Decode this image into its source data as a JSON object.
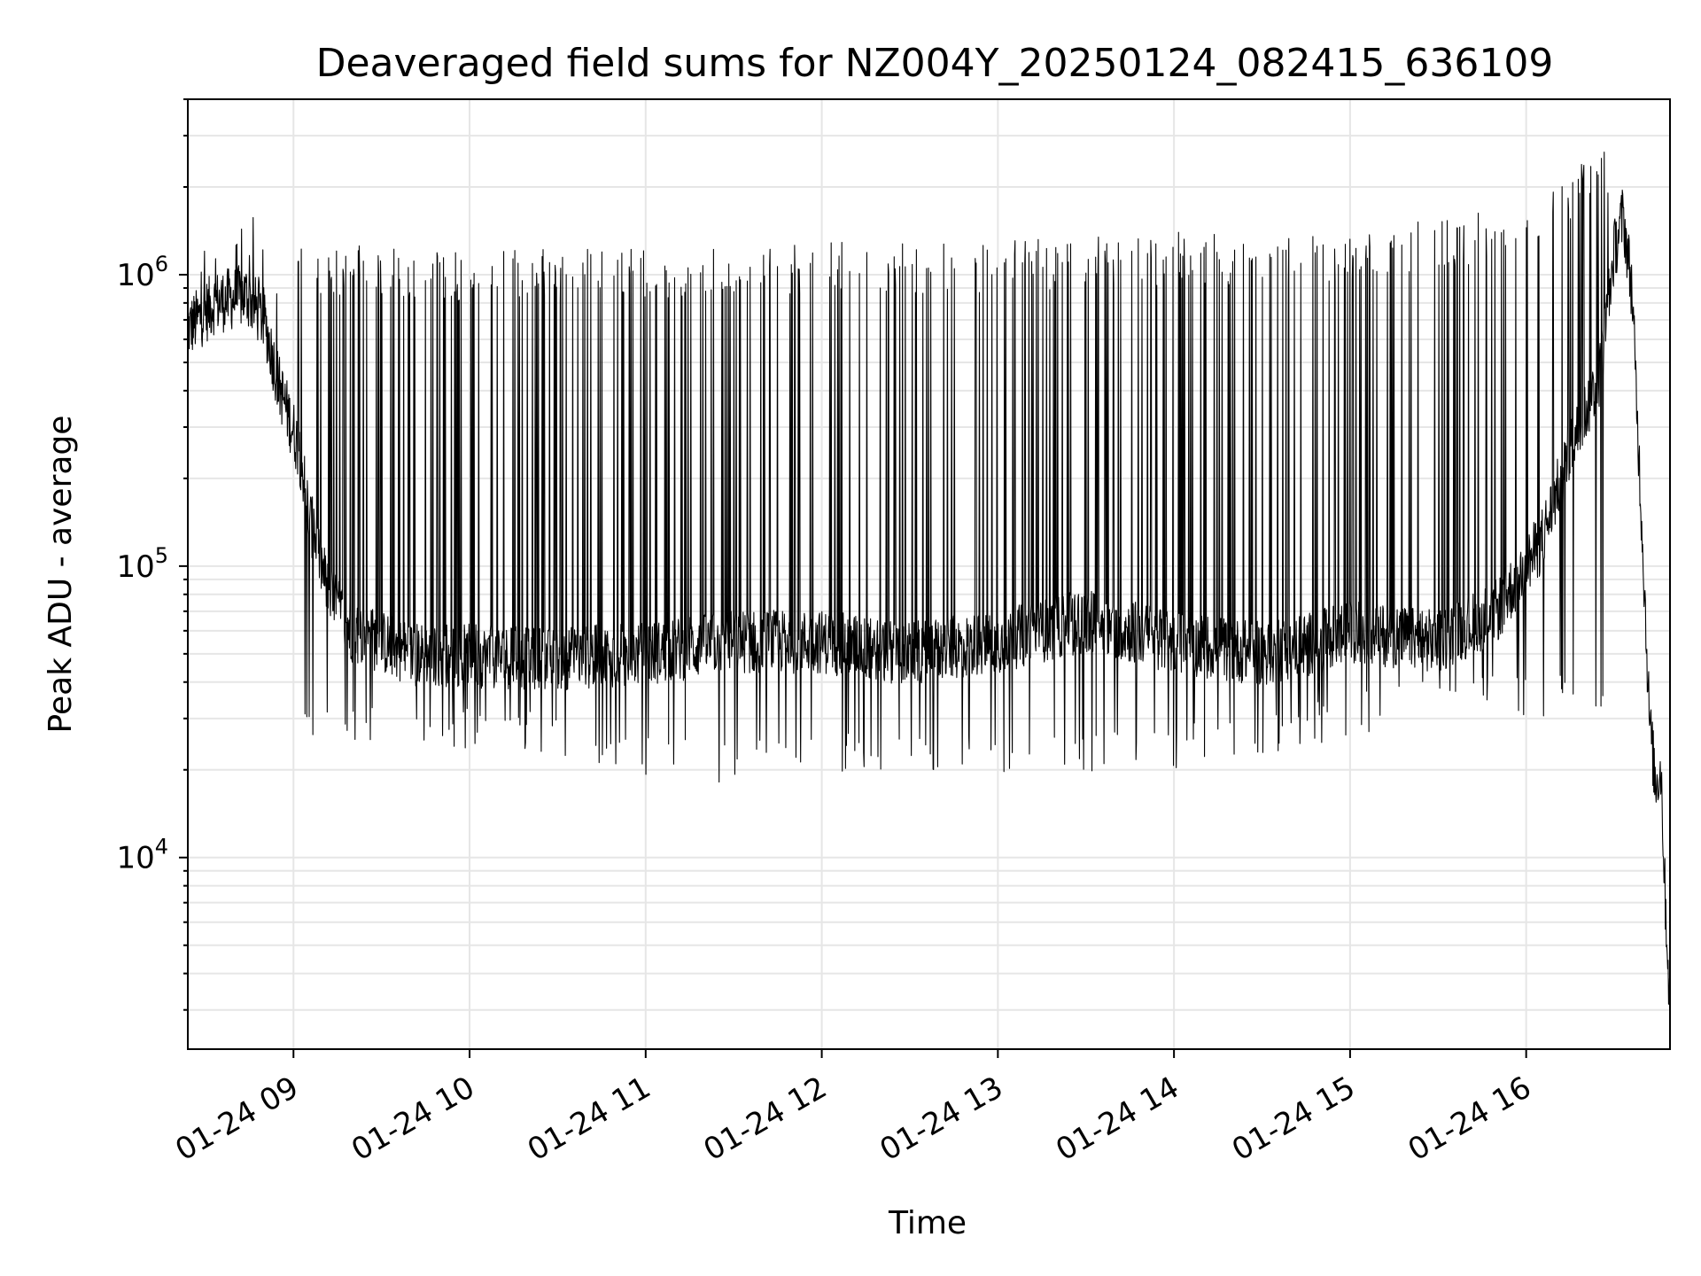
{
  "chart_data": {
    "type": "line",
    "title": "Deaveraged field sums for NZ004Y_20250124_082415_636109",
    "xlabel": "Time",
    "ylabel": "Peak ADU - average",
    "xscale": "time",
    "yscale": "log",
    "grid": true,
    "line_color": "#000000",
    "grid_color": "#e6e6e6",
    "xlim": [
      "2025-01-24 08:24",
      "2025-01-24 16:49"
    ],
    "ylim": [
      2200,
      4000000
    ],
    "x_tick_labels": [
      "01-24 09",
      "01-24 10",
      "01-24 11",
      "01-24 12",
      "01-24 13",
      "01-24 14",
      "01-24 15",
      "01-24 16"
    ],
    "y_tick_labels": [
      {
        "base": "10",
        "exp": "4"
      },
      {
        "base": "10",
        "exp": "5"
      },
      {
        "base": "10",
        "exp": "6"
      }
    ],
    "series": [
      {
        "style": "dense line with frequent spikes",
        "baseline_points": [
          {
            "x": "2025-01-24 08:24",
            "y": 650000
          },
          {
            "x": "2025-01-24 08:33",
            "y": 800000
          },
          {
            "x": "2025-01-24 08:44",
            "y": 850000
          },
          {
            "x": "2025-01-24 08:50",
            "y": 700000
          },
          {
            "x": "2025-01-24 08:55",
            "y": 420000
          },
          {
            "x": "2025-01-24 09:02",
            "y": 250000
          },
          {
            "x": "2025-01-24 09:06",
            "y": 140000
          },
          {
            "x": "2025-01-24 09:12",
            "y": 80000
          },
          {
            "x": "2025-01-24 09:20",
            "y": 60000
          },
          {
            "x": "2025-01-24 09:40",
            "y": 50000
          },
          {
            "x": "2025-01-24 10:30",
            "y": 48000
          },
          {
            "x": "2025-01-24 11:00",
            "y": 50000
          },
          {
            "x": "2025-01-24 11:30",
            "y": 55000
          },
          {
            "x": "2025-01-24 12:00",
            "y": 55000
          },
          {
            "x": "2025-01-24 12:30",
            "y": 50000
          },
          {
            "x": "2025-01-24 13:00",
            "y": 55000
          },
          {
            "x": "2025-01-24 13:30",
            "y": 65000
          },
          {
            "x": "2025-01-24 14:00",
            "y": 55000
          },
          {
            "x": "2025-01-24 14:30",
            "y": 50000
          },
          {
            "x": "2025-01-24 14:50",
            "y": 55000
          },
          {
            "x": "2025-01-24 15:00",
            "y": 60000
          },
          {
            "x": "2025-01-24 15:30",
            "y": 55000
          },
          {
            "x": "2025-01-24 15:50",
            "y": 70000
          },
          {
            "x": "2025-01-24 16:05",
            "y": 120000
          },
          {
            "x": "2025-01-24 16:15",
            "y": 250000
          },
          {
            "x": "2025-01-24 16:25",
            "y": 450000
          },
          {
            "x": "2025-01-24 16:30",
            "y": 1200000
          },
          {
            "x": "2025-01-24 16:33",
            "y": 1600000
          },
          {
            "x": "2025-01-24 16:36",
            "y": 900000
          },
          {
            "x": "2025-01-24 16:38",
            "y": 300000
          },
          {
            "x": "2025-01-24 16:40",
            "y": 100000
          },
          {
            "x": "2025-01-24 16:42",
            "y": 30000
          },
          {
            "x": "2025-01-24 16:44",
            "y": 18000
          },
          {
            "x": "2025-01-24 16:46",
            "y": 20000
          },
          {
            "x": "2025-01-24 16:47",
            "y": 9000
          },
          {
            "x": "2025-01-24 16:49",
            "y": 3000
          }
        ],
        "spike_peak_envelope": [
          {
            "x": "2025-01-24 09:00",
            "y": 1300000
          },
          {
            "x": "2025-01-24 10:00",
            "y": 1200000
          },
          {
            "x": "2025-01-24 11:00",
            "y": 1250000
          },
          {
            "x": "2025-01-24 12:00",
            "y": 1300000
          },
          {
            "x": "2025-01-24 13:00",
            "y": 1300000
          },
          {
            "x": "2025-01-24 14:00",
            "y": 1400000
          },
          {
            "x": "2025-01-24 15:00",
            "y": 1400000
          },
          {
            "x": "2025-01-24 15:55",
            "y": 1700000
          },
          {
            "x": "2025-01-24 16:27",
            "y": 2800000
          }
        ],
        "spike_trough_envelope": [
          {
            "x": "2025-01-24 09:30",
            "y": 25000
          },
          {
            "x": "2025-01-24 10:30",
            "y": 22000
          },
          {
            "x": "2025-01-24 11:22",
            "y": 17500
          },
          {
            "x": "2025-01-24 12:30",
            "y": 20000
          },
          {
            "x": "2025-01-24 13:10",
            "y": 18500
          },
          {
            "x": "2025-01-24 14:20",
            "y": 21000
          },
          {
            "x": "2025-01-24 15:30",
            "y": 30000
          }
        ]
      }
    ]
  }
}
